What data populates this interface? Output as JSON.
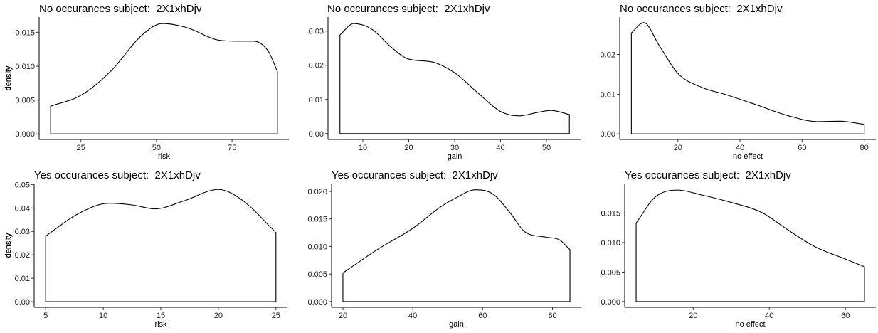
{
  "chart_data": [
    {
      "type": "area",
      "title": "No occurances subject:  2X1xhDjv",
      "xlabel": "risk",
      "ylabel": "density",
      "xlim": [
        11.2,
        93.8
      ],
      "ylim": [
        -0.00082,
        0.01725
      ],
      "xticks": [
        25,
        50,
        75
      ],
      "yticks": [
        0.0,
        0.005,
        0.01,
        0.015
      ],
      "ytick_labels": [
        "0.000",
        "0.005",
        "0.010",
        "0.015"
      ],
      "x": [
        15,
        25,
        35,
        45,
        52,
        60,
        70,
        76,
        82,
        87,
        90
      ],
      "y": [
        0.0041,
        0.0057,
        0.0093,
        0.0145,
        0.0163,
        0.0157,
        0.0139,
        0.0137,
        0.0137,
        0.0122,
        0.0092
      ]
    },
    {
      "type": "area",
      "title": "No occurances subject:  2X1xhDjv",
      "xlabel": "gain",
      "ylabel": "density",
      "xlim": [
        2.4,
        57.6
      ],
      "ylim": [
        -0.0017,
        0.0341
      ],
      "xticks": [
        10,
        20,
        30,
        40,
        50
      ],
      "yticks": [
        0.0,
        0.01,
        0.02,
        0.03
      ],
      "ytick_labels": [
        "0.00",
        "0.01",
        "0.02",
        "0.03"
      ],
      "x": [
        5,
        8,
        12,
        16,
        20,
        25,
        30,
        35,
        40,
        44,
        48,
        51,
        55
      ],
      "y": [
        0.0289,
        0.0322,
        0.0305,
        0.0255,
        0.0218,
        0.021,
        0.0178,
        0.012,
        0.0065,
        0.0052,
        0.0062,
        0.0068,
        0.0056
      ]
    },
    {
      "type": "area",
      "title": "No occurances subject:  2X1xhDjv",
      "xlabel": "no effect",
      "ylabel": "density",
      "xlim": [
        1.25,
        83.75
      ],
      "ylim": [
        -0.0014,
        0.0294
      ],
      "xticks": [
        20,
        40,
        60,
        80
      ],
      "yticks": [
        0.0,
        0.01,
        0.02
      ],
      "ytick_labels": [
        "0.00",
        "0.01",
        "0.02"
      ],
      "x": [
        5,
        9,
        14,
        20,
        28,
        35,
        45,
        55,
        65,
        72,
        80
      ],
      "y": [
        0.0254,
        0.028,
        0.0222,
        0.0152,
        0.0116,
        0.01,
        0.0074,
        0.0047,
        0.0031,
        0.0032,
        0.0024
      ]
    },
    {
      "type": "area",
      "title": "Yes occurances subject:  2X1xhDjv",
      "xlabel": "risk",
      "ylabel": "density",
      "xlim": [
        4.0,
        26.0
      ],
      "ylim": [
        -0.0024,
        0.0504
      ],
      "xticks": [
        5,
        10,
        15,
        20,
        25
      ],
      "yticks": [
        0.0,
        0.01,
        0.02,
        0.03,
        0.04,
        0.05
      ],
      "ytick_labels": [
        "0.00",
        "0.01",
        "0.02",
        "0.03",
        "0.04",
        "0.05"
      ],
      "x": [
        5,
        8,
        10.5,
        12.5,
        14.5,
        17,
        20,
        22,
        25
      ],
      "y": [
        0.028,
        0.038,
        0.042,
        0.0413,
        0.0396,
        0.043,
        0.0479,
        0.0436,
        0.0295
      ]
    },
    {
      "type": "area",
      "title": "Yes occurances subject:  2X1xhDjv",
      "xlabel": "gain",
      "ylabel": "density",
      "xlim": [
        16.75,
        88.25
      ],
      "ylim": [
        -0.00105,
        0.02142
      ],
      "xticks": [
        20,
        40,
        60,
        80
      ],
      "yticks": [
        0.0,
        0.005,
        0.01,
        0.015,
        0.02
      ],
      "ytick_labels": [
        "0.000",
        "0.005",
        "0.010",
        "0.015",
        "0.020"
      ],
      "x": [
        20,
        30,
        40,
        48,
        52,
        58,
        63,
        68,
        72,
        78,
        82,
        85
      ],
      "y": [
        0.0052,
        0.0095,
        0.0133,
        0.0172,
        0.0187,
        0.0203,
        0.0195,
        0.016,
        0.0127,
        0.0117,
        0.0112,
        0.0094
      ]
    },
    {
      "type": "area",
      "title": "Yes occurances subject:  2X1xhDjv",
      "xlabel": "no effect",
      "ylabel": "density",
      "xlim": [
        2.0,
        68.0
      ],
      "ylim": [
        -0.00098,
        0.02
      ],
      "xticks": [
        20,
        40,
        60
      ],
      "yticks": [
        0.0,
        0.005,
        0.01,
        0.015
      ],
      "ytick_labels": [
        "0.000",
        "0.005",
        "0.010",
        "0.015"
      ],
      "x": [
        5,
        10,
        16,
        22,
        30,
        38,
        45,
        52,
        60,
        65
      ],
      "y": [
        0.0133,
        0.0177,
        0.0189,
        0.0181,
        0.0168,
        0.0151,
        0.0121,
        0.0093,
        0.0072,
        0.0059
      ]
    }
  ]
}
